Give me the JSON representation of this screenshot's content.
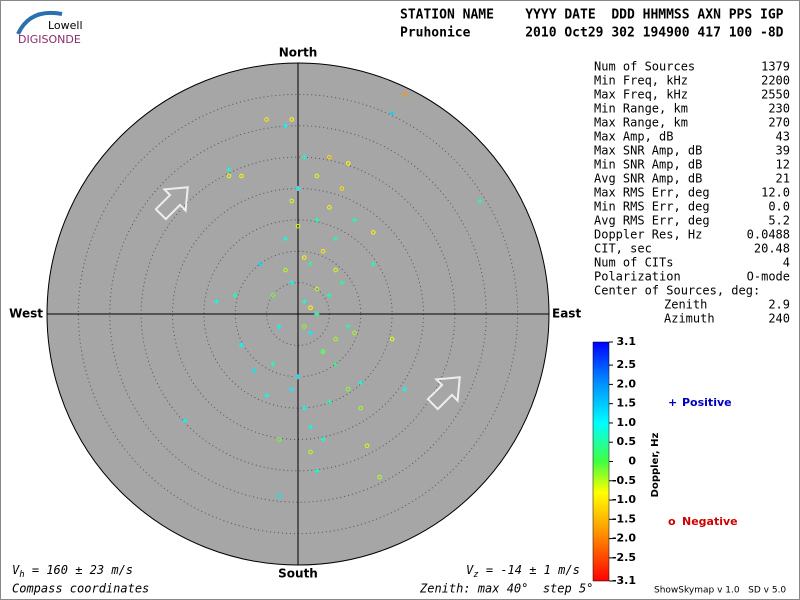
{
  "logo": {
    "top": "Lowell",
    "bottom": "DIGISONDE"
  },
  "header": {
    "line1": "STATION NAME    YYYY DATE  DDD HHMMSS AXN PPS IGP",
    "line2": "Pruhonice       2010 Oct29 302 194900 417 100 -8D"
  },
  "table": {
    "rows": [
      [
        "Num of Sources",
        "1379"
      ],
      [
        "Min Freq, kHz",
        "2200"
      ],
      [
        "Max Freq, kHz",
        "2550"
      ],
      [
        "Min Range, km",
        "230"
      ],
      [
        "Max Range, km",
        "270"
      ],
      [
        "Max Amp, dB",
        "43"
      ],
      [
        "Max SNR Amp, dB",
        "39"
      ],
      [
        "Min SNR Amp, dB",
        "12"
      ],
      [
        "Avg SNR Amp, dB",
        "21"
      ],
      [
        "Max RMS Err, deg",
        "12.0"
      ],
      [
        "Min RMS Err, deg",
        "0.0"
      ],
      [
        "Avg RMS Err, deg",
        "5.2"
      ],
      [
        "Doppler Res, Hz",
        "0.0488"
      ],
      [
        "CIT, sec",
        "20.48"
      ],
      [
        "Num of CITs",
        "4"
      ],
      [
        "Polarization",
        "O-mode"
      ]
    ],
    "center_title": "Center of Sources, deg:",
    "center_rows": [
      [
        "Zenith",
        "2.9"
      ],
      [
        "Azimuth",
        "240"
      ]
    ]
  },
  "footer": {
    "vh": {
      "symbol": "V",
      "subscript": "h",
      "text": " = 160 ± 23 m/s"
    },
    "vz": {
      "symbol": "V",
      "subscript": "z",
      "text": " = -14 ± 1 m/s"
    },
    "coords": "Compass coordinates",
    "zenith": "Zenith: max 40°  step 5°",
    "version": "ShowSkymap v 1.0   SD v 5.0"
  },
  "chart_data": {
    "type": "skymap",
    "directions": {
      "north": "North",
      "south": "South",
      "east": "East",
      "west": "West"
    },
    "rlim": [
      0,
      40
    ],
    "rticks": [
      5,
      10,
      15,
      20,
      25,
      30,
      35
    ],
    "colorbar": {
      "label": "Doppler, Hz",
      "clim": [
        -3.1,
        3.1
      ],
      "ticks": [
        3.1,
        2.5,
        {
          "value": 2,
          "label": "2.0"
        },
        1.5,
        {
          "value": 1,
          "label": "1.0"
        },
        0.5,
        0,
        -0.5,
        {
          "value": -1,
          "label": "-1.0"
        },
        -1.5,
        {
          "value": -2,
          "label": "-2.0"
        },
        -2.5,
        -3.1
      ]
    },
    "series": [
      {
        "name": "Positive",
        "symbol": "+",
        "color": "#0000c0",
        "x": [
          1,
          2,
          3,
          -1,
          4,
          0,
          2,
          5,
          -3,
          1,
          6,
          -2,
          3,
          0,
          -10,
          -13,
          -6,
          8,
          10,
          12,
          -18,
          -3,
          17,
          -11,
          15,
          29,
          -9,
          4,
          -1,
          7,
          2,
          -4,
          5,
          1,
          -2,
          3,
          6,
          -5,
          9,
          -7
        ],
        "y": [
          2,
          -3,
          0,
          5,
          -6,
          -10,
          8,
          3,
          -2,
          -15,
          -8,
          12,
          15,
          20,
          3,
          2,
          8,
          -2,
          -11,
          8,
          -17,
          -29,
          -12,
          23,
          32,
          18,
          -5,
          -20,
          -12,
          5,
          -18,
          -8,
          -14,
          25,
          30,
          -25,
          12,
          -13,
          15,
          -9
        ],
        "doppler": [
          0.8,
          1.1,
          0.5,
          0.9,
          0.6,
          1.2,
          0.4,
          0.7,
          1.0,
          0.9,
          0.3,
          0.8,
          0.6,
          1.0,
          0.7,
          0.9,
          1.3,
          0.5,
          0.8,
          0.6,
          1.1,
          1.2,
          0.9,
          0.8,
          1.4,
          0.6,
          1.0,
          0.7,
          1.1,
          0.4,
          0.9,
          0.6,
          0.5,
          0.8,
          1.0,
          0.7,
          0.5,
          0.9,
          0.6,
          1.2
        ]
      },
      {
        "name": "Negative",
        "symbol": "o",
        "color": "#d00000",
        "x": [
          2,
          3,
          1,
          4,
          5,
          3,
          -1,
          6,
          7,
          -2,
          8,
          0,
          -9,
          -11,
          -5,
          -1,
          5,
          9,
          8,
          12,
          -3,
          2,
          11,
          10,
          4,
          15,
          6,
          -4,
          1,
          13,
          17
        ],
        "y": [
          1,
          4,
          -2,
          10,
          17,
          22,
          18,
          -4,
          20,
          7,
          24,
          14,
          22,
          22,
          31,
          31,
          25,
          -3,
          -12,
          13,
          -20,
          -22,
          -21,
          -15,
          -6,
          -4,
          7,
          3,
          9,
          -26,
          35
        ],
        "doppler": [
          -0.8,
          -0.5,
          -0.3,
          -1.0,
          -0.9,
          -0.7,
          -0.6,
          -0.4,
          -1.1,
          -0.5,
          -0.8,
          -0.6,
          -0.9,
          -0.7,
          -1.0,
          -0.8,
          -1.2,
          -0.4,
          -0.3,
          -0.9,
          -0.2,
          -0.5,
          -0.6,
          -0.4,
          -0.3,
          -0.7,
          -0.6,
          -0.2,
          -0.9,
          -0.5,
          -1.8
        ]
      }
    ]
  }
}
